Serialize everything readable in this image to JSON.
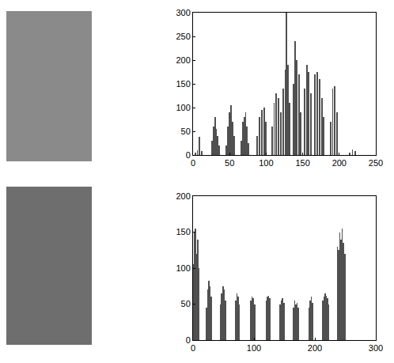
{
  "chart_data": [
    {
      "type": "bar",
      "x": [
        3,
        6,
        9,
        12,
        26,
        28,
        30,
        32,
        34,
        36,
        45,
        48,
        50,
        52,
        54,
        56,
        66,
        68,
        70,
        72,
        74,
        76,
        88,
        91,
        94,
        97,
        100,
        108,
        111,
        114,
        117,
        120,
        123,
        126,
        128,
        130,
        132,
        137,
        140,
        142,
        145,
        147,
        153,
        156,
        158,
        161,
        167,
        170,
        173,
        176,
        179,
        188,
        191,
        194,
        197,
        214,
        218,
        222
      ],
      "values": [
        5,
        10,
        38,
        8,
        30,
        60,
        80,
        55,
        40,
        20,
        20,
        60,
        90,
        105,
        70,
        40,
        30,
        70,
        80,
        90,
        60,
        25,
        40,
        80,
        95,
        100,
        70,
        60,
        110,
        130,
        120,
        90,
        140,
        180,
        300,
        190,
        110,
        150,
        240,
        200,
        170,
        90,
        140,
        190,
        175,
        130,
        170,
        175,
        160,
        120,
        80,
        70,
        140,
        145,
        90,
        5,
        12,
        8
      ],
      "color": "#505050",
      "xlim": [
        0,
        250
      ],
      "xticks": [
        0,
        50,
        100,
        150,
        200,
        250
      ],
      "ylim": [
        0,
        300
      ],
      "yticks": [
        0,
        50,
        100,
        150,
        200,
        250,
        300
      ]
    },
    {
      "type": "bar",
      "x": [
        0,
        2,
        4,
        6,
        8,
        10,
        22,
        24,
        26,
        28,
        30,
        45,
        47,
        49,
        51,
        53,
        70,
        72,
        74,
        76,
        95,
        97,
        99,
        101,
        120,
        122,
        124,
        126,
        143,
        145,
        147,
        149,
        165,
        167,
        169,
        171,
        173,
        190,
        192,
        194,
        196,
        213,
        215,
        217,
        219,
        221,
        223,
        237,
        239,
        241,
        243,
        245,
        247,
        249
      ],
      "values": [
        105,
        150,
        155,
        120,
        140,
        100,
        45,
        70,
        82,
        75,
        60,
        50,
        65,
        75,
        70,
        55,
        55,
        65,
        60,
        50,
        55,
        60,
        58,
        50,
        55,
        60,
        62,
        58,
        50,
        55,
        58,
        52,
        45,
        55,
        50,
        52,
        45,
        45,
        55,
        60,
        52,
        55,
        60,
        65,
        62,
        58,
        50,
        130,
        125,
        150,
        140,
        155,
        135,
        120
      ],
      "color": "#505050",
      "xlim": [
        0,
        300
      ],
      "xticks": [
        0,
        100,
        200,
        300
      ],
      "ylim": [
        0,
        200
      ],
      "yticks": [
        0,
        50,
        100,
        150,
        200
      ]
    }
  ]
}
